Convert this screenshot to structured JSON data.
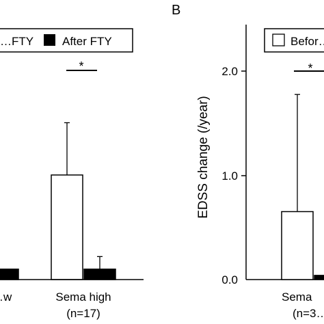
{
  "chart_data": [
    {
      "panel": "",
      "type": "bar",
      "categories": [
        "…w",
        "Sema high"
      ],
      "category_ns": [
        "",
        "(n=17)"
      ],
      "series": [
        {
          "name": "…FTY",
          "values": [
            null,
            1.0
          ],
          "errors": [
            null,
            0.5
          ],
          "color": "#ffffff"
        },
        {
          "name": "After FTY",
          "values": [
            0.1,
            0.1
          ],
          "errors": [
            null,
            0.12
          ],
          "color": "#000000"
        }
      ],
      "significance": [
        {
          "category": "Sema high",
          "label": "*"
        }
      ],
      "ylim": [
        0,
        2.0
      ]
    },
    {
      "panel": "B",
      "type": "bar",
      "ylabel": "EDSS change (/year)",
      "yticks": [
        "0.0",
        "1.0",
        "2.0"
      ],
      "ylim": [
        0,
        2.0
      ],
      "categories": [
        "Sema"
      ],
      "category_ns": [
        "(n=3…"
      ],
      "series": [
        {
          "name": "Befor…",
          "values": [
            0.65
          ],
          "errors": [
            1.12
          ],
          "color": "#ffffff"
        },
        {
          "name": "",
          "values": [
            0.04
          ],
          "errors": [
            null
          ],
          "color": "#000000"
        }
      ],
      "significance": [
        {
          "category": "Sema",
          "label": "*"
        }
      ]
    }
  ]
}
